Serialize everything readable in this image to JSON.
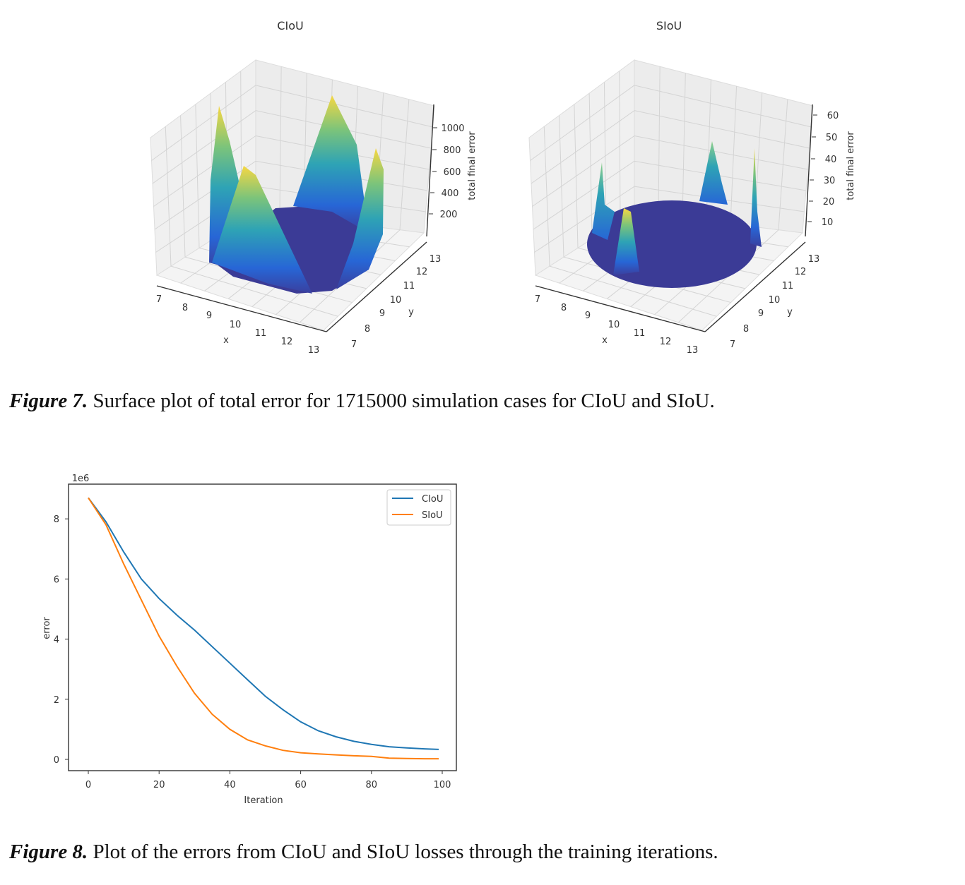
{
  "figure7": {
    "label": "Figure 7.",
    "text": " Surface plot of total error for 1715000 simulation cases for CIoU and SIoU."
  },
  "figure8": {
    "label": "Figure 8.",
    "text": " Plot of the errors from CIoU and SIoU losses through the training iterations."
  },
  "chart_data": [
    {
      "type": "surface",
      "title": "CIoU",
      "xlabel": "x",
      "ylabel": "y",
      "zlabel": "total final error",
      "xticks": [
        "7",
        "8",
        "9",
        "10",
        "11",
        "12",
        "13"
      ],
      "yticks": [
        "7",
        "8",
        "9",
        "10",
        "11",
        "12",
        "13"
      ],
      "zticks": [
        "200",
        "400",
        "600",
        "800",
        "1000"
      ],
      "zlim": [
        0,
        1150
      ],
      "colormap": "viridis-like (blue to yellow)",
      "description_values": {
        "peak_max": 1100,
        "floor": 0
      }
    },
    {
      "type": "surface",
      "title": "SIoU",
      "xlabel": "x",
      "ylabel": "y",
      "zlabel": "total final error",
      "xticks": [
        "7",
        "8",
        "9",
        "10",
        "11",
        "12",
        "13"
      ],
      "yticks": [
        "7",
        "8",
        "9",
        "10",
        "11",
        "12",
        "13"
      ],
      "zticks": [
        "10",
        "20",
        "30",
        "40",
        "50",
        "60"
      ],
      "zlim": [
        0,
        65
      ],
      "colormap": "viridis-like (blue to yellow)",
      "description_values": {
        "peak_max": 48,
        "floor": 0
      }
    },
    {
      "type": "line",
      "xlabel": "Iteration",
      "ylabel": "error",
      "y_offset_label": "1e6",
      "xlim": [
        -5,
        104
      ],
      "ylim": [
        -0.35,
        9.1
      ],
      "xticks": [
        "0",
        "20",
        "40",
        "60",
        "80",
        "100"
      ],
      "yticks": [
        "0",
        "2",
        "4",
        "6",
        "8"
      ],
      "grid": false,
      "legend": "top-right",
      "x": [
        0,
        5,
        10,
        15,
        20,
        25,
        30,
        35,
        40,
        45,
        50,
        55,
        60,
        65,
        70,
        75,
        80,
        85,
        90,
        95,
        99
      ],
      "series": [
        {
          "name": "CIoU",
          "color": "#1f77b4",
          "values": [
            8.7,
            7.9,
            6.9,
            6.0,
            5.35,
            4.8,
            4.3,
            3.75,
            3.2,
            2.65,
            2.1,
            1.65,
            1.25,
            0.95,
            0.75,
            0.6,
            0.5,
            0.42,
            0.38,
            0.35,
            0.33
          ]
        },
        {
          "name": "SIoU",
          "color": "#ff7f0e",
          "values": [
            8.7,
            7.8,
            6.5,
            5.3,
            4.1,
            3.1,
            2.2,
            1.5,
            1.0,
            0.65,
            0.45,
            0.3,
            0.22,
            0.18,
            0.15,
            0.12,
            0.1,
            0.04,
            0.03,
            0.02,
            0.02
          ]
        }
      ]
    }
  ]
}
